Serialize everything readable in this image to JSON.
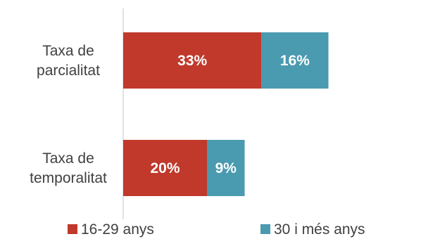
{
  "chart_data": {
    "type": "bar",
    "orientation": "horizontal",
    "stacked": true,
    "categories": [
      [
        "Taxa de",
        "parcialitat"
      ],
      [
        "Taxa de",
        "temporalitat"
      ]
    ],
    "series": [
      {
        "name": "16-29 anys",
        "color": "#C0392B",
        "values": [
          33,
          20
        ],
        "labels": [
          "33%",
          "20%"
        ]
      },
      {
        "name": "30 i més anys",
        "color": "#4A9AB0",
        "values": [
          16,
          9
        ],
        "labels": [
          "16%",
          "9%"
        ]
      }
    ],
    "legend_position": "bottom",
    "axis_color": "#D9D9D9",
    "grid": false
  }
}
